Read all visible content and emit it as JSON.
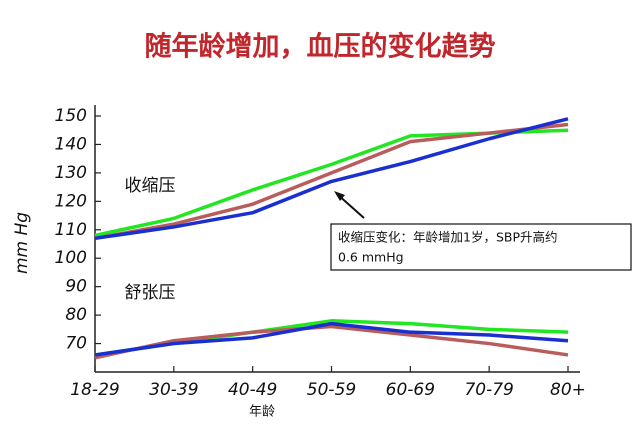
{
  "chart_data": {
    "type": "line",
    "title": "随年龄增加，血压的变化趋势",
    "x_label": "年龄",
    "y_label": "mm Hg",
    "categories": [
      "18-29",
      "30-39",
      "40-49",
      "50-59",
      "60-69",
      "70-79",
      "80+"
    ],
    "series": [
      {
        "color": "#22e622",
        "values": [
          108,
          114,
          124,
          133,
          143,
          144,
          145
        ]
      },
      {
        "color": "#b85c5c",
        "values": [
          107,
          112,
          119,
          130,
          141,
          144,
          147
        ]
      },
      {
        "color": "#1a2fd0",
        "values": [
          107,
          111,
          116,
          127,
          134,
          142,
          149
        ]
      },
      {
        "color": "#22e622",
        "values": [
          66,
          70,
          74,
          78,
          77,
          75,
          74
        ]
      },
      {
        "color": "#b85c5c",
        "values": [
          65,
          71,
          74,
          76,
          73,
          70,
          66
        ]
      },
      {
        "color": "#1a2fd0",
        "values": [
          66,
          70,
          72,
          77,
          74,
          73,
          71
        ]
      }
    ],
    "ylim": [
      60,
      150
    ],
    "yticks": [
      70,
      80,
      90,
      100,
      110,
      120,
      130,
      140,
      150
    ],
    "grid": false,
    "group_labels": [
      "收缩压",
      "舒张压"
    ],
    "annotation": [
      "收缩压变化：年龄增加1岁，SBP升高约",
      "0.6 mmHg"
    ]
  }
}
